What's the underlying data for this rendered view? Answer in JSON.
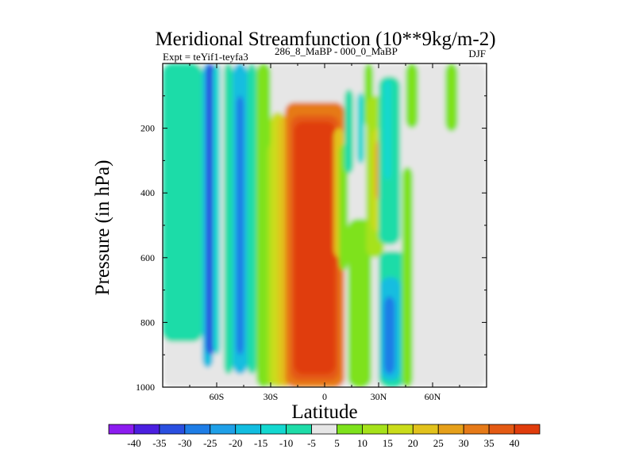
{
  "chart_data": {
    "type": "heatmap",
    "title": "Meridional Streamfunction (10**9kg/m-2)",
    "subtitle_left": "Expt = teYif1-teyfa3",
    "subtitle_super": "286_8_MaBP - 000_0_MaBP",
    "subtitle_right": "DJF",
    "xlabel": "Latitude",
    "ylabel": "Pressure (in hPa)",
    "xlim": [
      -90,
      90
    ],
    "ylim": [
      0,
      1000
    ],
    "x_ticks": [
      {
        "value": -60,
        "label": "60S"
      },
      {
        "value": -30,
        "label": "30S"
      },
      {
        "value": 0,
        "label": "0"
      },
      {
        "value": 30,
        "label": "30N"
      },
      {
        "value": 60,
        "label": "60N"
      }
    ],
    "y_ticks": [
      {
        "value": 200,
        "label": "200"
      },
      {
        "value": 400,
        "label": "400"
      },
      {
        "value": 600,
        "label": "600"
      },
      {
        "value": 800,
        "label": "800"
      },
      {
        "value": 1000,
        "label": "1000"
      }
    ],
    "colorbar": {
      "labels": [
        "-40",
        "-35",
        "-30",
        "-25",
        "-20",
        "-15",
        "-10",
        "-5",
        "5",
        "10",
        "15",
        "20",
        "25",
        "30",
        "35",
        "40"
      ],
      "colors": [
        "#8c1cf0",
        "#4b1fe0",
        "#2a4fe0",
        "#1e7de6",
        "#1fa0e8",
        "#12bde0",
        "#14d8d0",
        "#1edca8",
        "#e6e6e6",
        "#7ee21c",
        "#a6e21a",
        "#cadc1a",
        "#e2c21c",
        "#e6a01a",
        "#e67a18",
        "#e45a14",
        "#e03c0c"
      ]
    },
    "regions": [
      {
        "lat": [
          -90,
          90
        ],
        "p": [
          0,
          1000
        ],
        "value": 0
      },
      {
        "lat": [
          -90,
          -68
        ],
        "p": [
          0,
          860
        ],
        "value": -7
      },
      {
        "lat": [
          -68,
          -62
        ],
        "p": [
          0,
          940
        ],
        "value": -20
      },
      {
        "lat": [
          -66,
          -61
        ],
        "p": [
          0,
          900
        ],
        "value": -32
      },
      {
        "lat": [
          -62,
          -58
        ],
        "p": [
          0,
          900
        ],
        "value": -15
      },
      {
        "lat": [
          -56,
          -51
        ],
        "p": [
          0,
          960
        ],
        "value": -8
      },
      {
        "lat": [
          -51,
          -43
        ],
        "p": [
          0,
          960
        ],
        "value": -20
      },
      {
        "lat": [
          -49,
          -45
        ],
        "p": [
          100,
          900
        ],
        "value": -28
      },
      {
        "lat": [
          -43,
          -38
        ],
        "p": [
          0,
          960
        ],
        "value": -8
      },
      {
        "lat": [
          -38,
          -30
        ],
        "p": [
          0,
          1000
        ],
        "value": 8
      },
      {
        "lat": [
          -32,
          -28
        ],
        "p": [
          250,
          1000
        ],
        "value": 12
      },
      {
        "lat": [
          -30,
          -22
        ],
        "p": [
          150,
          1000
        ],
        "value": 15
      },
      {
        "lat": [
          -26,
          -18
        ],
        "p": [
          160,
          1000
        ],
        "value": 22
      },
      {
        "lat": [
          -22,
          11
        ],
        "p": [
          120,
          1000
        ],
        "value": 30
      },
      {
        "lat": [
          -19,
          8
        ],
        "p": [
          160,
          980
        ],
        "value": 38
      },
      {
        "lat": [
          -17,
          6
        ],
        "p": [
          180,
          960
        ],
        "value": 42
      },
      {
        "lat": [
          5,
          11
        ],
        "p": [
          200,
          600
        ],
        "value": 20
      },
      {
        "lat": [
          8,
          13
        ],
        "p": [
          250,
          640
        ],
        "value": 8
      },
      {
        "lat": [
          11,
          16
        ],
        "p": [
          80,
          340
        ],
        "value": -8
      },
      {
        "lat": [
          13,
          26
        ],
        "p": [
          480,
          1000
        ],
        "value": 8
      },
      {
        "lat": [
          18,
          22
        ],
        "p": [
          90,
          310
        ],
        "value": -12
      },
      {
        "lat": [
          22,
          27
        ],
        "p": [
          0,
          200
        ],
        "value": 8
      },
      {
        "lat": [
          23,
          33
        ],
        "p": [
          100,
          600
        ],
        "value": 10
      },
      {
        "lat": [
          26,
          32
        ],
        "p": [
          200,
          520
        ],
        "value": 18
      },
      {
        "lat": [
          28,
          31
        ],
        "p": [
          240,
          420
        ],
        "value": 26
      },
      {
        "lat": [
          30,
          42
        ],
        "p": [
          40,
          560
        ],
        "value": -8
      },
      {
        "lat": [
          33,
          37
        ],
        "p": [
          50,
          360
        ],
        "value": -14
      },
      {
        "lat": [
          30,
          45
        ],
        "p": [
          580,
          1000
        ],
        "value": -8
      },
      {
        "lat": [
          31,
          42
        ],
        "p": [
          660,
          980
        ],
        "value": -18
      },
      {
        "lat": [
          33,
          39
        ],
        "p": [
          720,
          960
        ],
        "value": -26
      },
      {
        "lat": [
          43,
          49
        ],
        "p": [
          320,
          1000
        ],
        "value": 7
      },
      {
        "lat": [
          45,
          52
        ],
        "p": [
          0,
          200
        ],
        "value": 7
      },
      {
        "lat": [
          67,
          74
        ],
        "p": [
          0,
          210
        ],
        "value": 7
      }
    ]
  }
}
